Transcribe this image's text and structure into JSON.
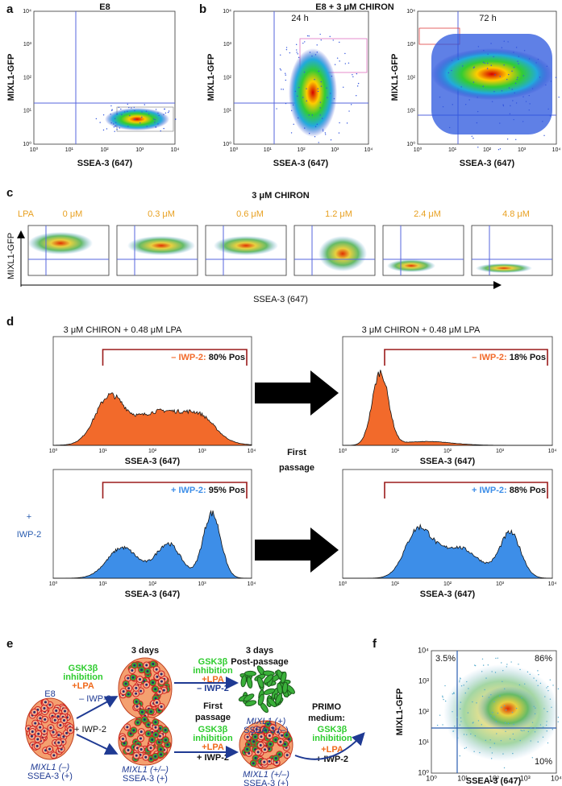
{
  "panel_labels": [
    "a",
    "b",
    "c",
    "d",
    "e",
    "f"
  ],
  "log_ticks": [
    "10⁰",
    "10¹",
    "10²",
    "10³",
    "10⁴"
  ],
  "panel_a": {
    "title": "E8",
    "y_label": "MIXL1-GFP",
    "x_label": "SSEA-3 (647)"
  },
  "panel_b": {
    "title": "E8 + 3 μM CHIRON",
    "subtitles": [
      "24 h",
      "72 h"
    ],
    "y_label": "MIXL1-GFP",
    "x_label": "SSEA-3 (647)"
  },
  "panel_c": {
    "title": "3 μM CHIRON",
    "row_label": "LPA",
    "concentrations": [
      "0 μM",
      "0.3 μM",
      "0.6 μM",
      "1.2 μM",
      "2.4 μM",
      "4.8 μM"
    ],
    "y_label": "MIXL1-GFP",
    "x_label": "SSEA-3 (647)"
  },
  "panel_d": {
    "column_title": "3 μM CHIRON + 0.48 μM LPA",
    "center_label": [
      "First",
      "passage"
    ],
    "row_label": [
      "+",
      "IWP-2"
    ],
    "x_label": "SSEA-3 (647)",
    "gates": [
      {
        "condition": "– IWP-2:",
        "result": "80% Pos"
      },
      {
        "condition": "– IWP-2:",
        "result": "18% Pos"
      },
      {
        "condition": "+ IWP-2:",
        "result": "95% Pos"
      },
      {
        "condition": "+ IWP-2:",
        "result": "88% Pos"
      }
    ]
  },
  "panel_e": {
    "start": "E8",
    "stage_titles": [
      "3 days",
      "3 days",
      "Post-passage"
    ],
    "gsk": [
      "GSK3β",
      "inhibition"
    ],
    "lpa": "+LPA",
    "minus_iwp": "– IWP-2",
    "plus_iwp": "+ IWP-2",
    "first_passage": [
      "First",
      "passage"
    ],
    "primo": [
      "PRIMO",
      "medium:"
    ],
    "marker_labels": [
      {
        "gene": "MIXL1 (–)",
        "ssea": "SSEA-3 (+)"
      },
      {
        "gene": "MIXL1 (+/–)",
        "ssea": "SSEA-3 (+)"
      },
      {
        "gene": "MIXL1 (+)",
        "ssea": "SSEA-3 (–)"
      },
      {
        "gene": "MIXL1 (+/–)",
        "ssea": "SSEA-3 (+)"
      }
    ]
  },
  "panel_f": {
    "y_label": "MIXL1-GFP",
    "x_label": "SSEA-3 (647)",
    "quadrants": [
      "3.5%",
      "86%",
      "10%"
    ]
  }
}
